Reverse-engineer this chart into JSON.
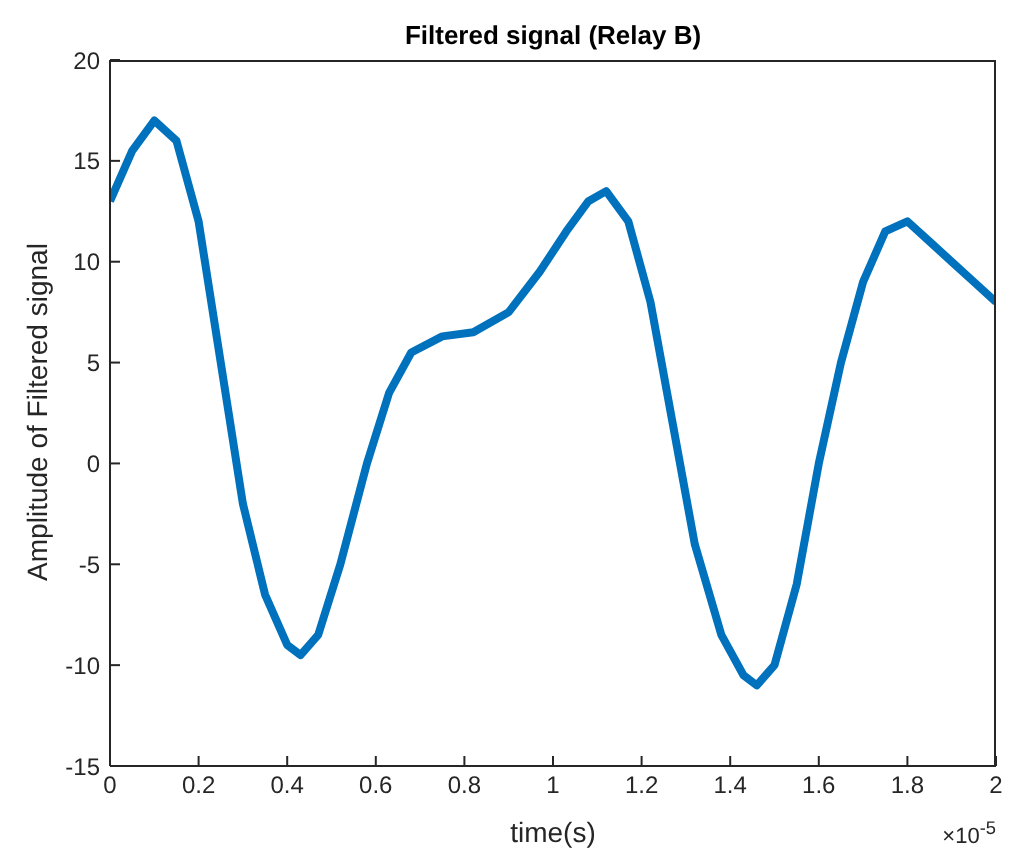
{
  "chart_data": {
    "type": "line",
    "title": "Filtered signal (Relay B)",
    "xlabel": "time(s)",
    "ylabel": "Amplitude of Filtered signal",
    "annotations": [
      "×10$^{-5}$"
    ],
    "x": [
      0,
      0.05,
      0.1,
      0.15,
      0.2,
      0.25,
      0.3,
      0.35,
      0.4,
      0.43,
      0.47,
      0.52,
      0.58,
      0.63,
      0.68,
      0.75,
      0.82,
      0.9,
      0.97,
      1.03,
      1.08,
      1.12,
      1.17,
      1.22,
      1.27,
      1.32,
      1.38,
      1.43,
      1.46,
      1.5,
      1.55,
      1.6,
      1.65,
      1.7,
      1.75,
      1.8,
      1.85,
      1.9,
      1.95,
      2
    ],
    "series": [
      {
        "color": "#0072bd",
        "values": [
          13,
          15.5,
          17,
          16,
          12,
          5,
          -2,
          -6.5,
          -9,
          -9.5,
          -8.5,
          -5,
          0,
          3.5,
          5.5,
          6.3,
          6.5,
          7.5,
          9.5,
          11.5,
          13,
          13.5,
          12,
          8,
          2,
          -4,
          -8.5,
          -10.5,
          -11,
          -10,
          -6,
          0,
          5,
          9,
          11.5,
          12,
          11,
          10,
          9,
          8
        ]
      }
    ],
    "xlim": [
      0,
      2
    ],
    "xticks": [
      0,
      0.2,
      0.4,
      0.6,
      0.8,
      1,
      1.2,
      1.4,
      1.6,
      1.8,
      2
    ],
    "ylim": [
      -15,
      20
    ],
    "yticks": [
      -15,
      -10,
      -5,
      0,
      5,
      10,
      15,
      20
    ],
    "line_style": "solid",
    "marker": "none"
  }
}
